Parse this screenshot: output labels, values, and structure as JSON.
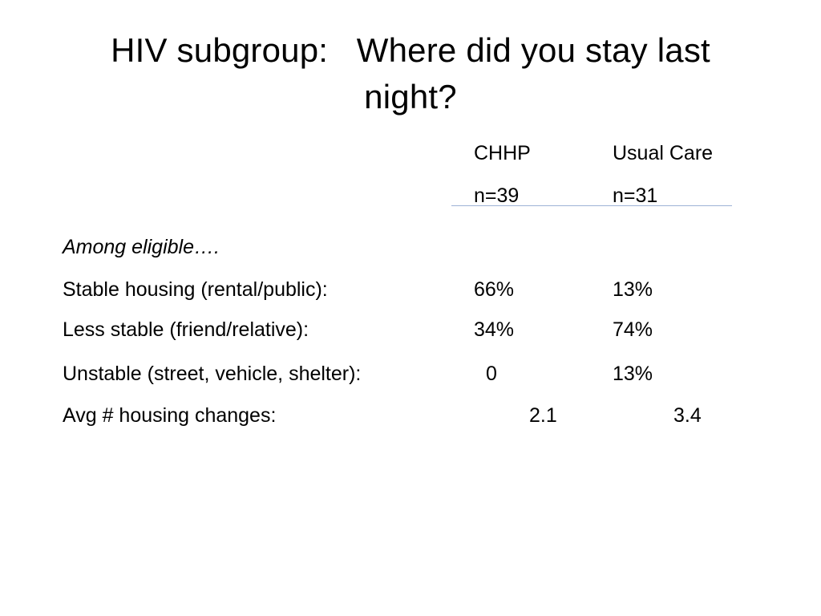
{
  "slide": {
    "title_line1": "HIV subgroup:   Where did you stay last",
    "title_line2": "night?",
    "columns": {
      "col1_name": "CHHP",
      "col1_n": "n=39",
      "col2_name": "Usual Care",
      "col2_n": "n=31"
    },
    "section_label": "Among eligible….",
    "rows": [
      {
        "label": "Stable housing (rental/public):",
        "chhp": "66%",
        "usual": "13%"
      },
      {
        "label": "Less stable (friend/relative):",
        "chhp": "34%",
        "usual": "74%"
      },
      {
        "label": "Unstable (street, vehicle, shelter):",
        "chhp": "0",
        "usual": "13%"
      },
      {
        "label": "Avg # housing changes:",
        "chhp": "2.1",
        "usual": "3.4"
      }
    ],
    "colors": {
      "text": "#000000",
      "header_rule": "#9db3d6",
      "background": "#ffffff"
    }
  }
}
